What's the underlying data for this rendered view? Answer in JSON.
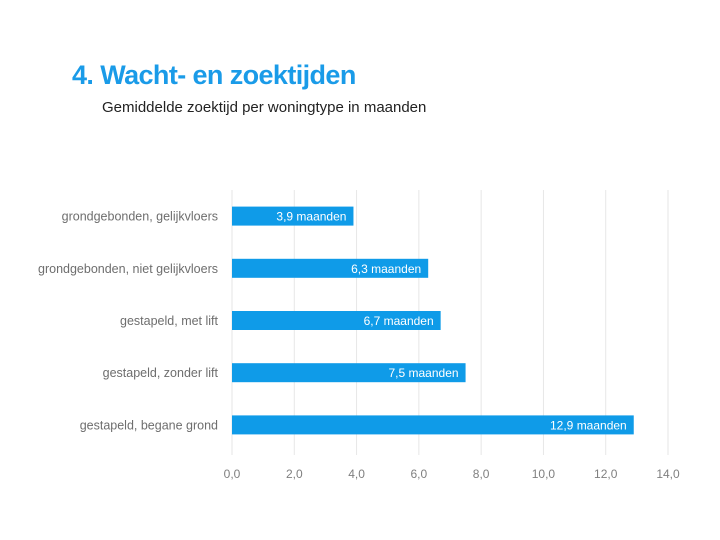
{
  "page": {
    "title": "4. Wacht- en zoektijden",
    "subtitle": "Gemiddelde zoektijd per woningtype in maanden"
  },
  "colors": {
    "title": "#1a9be8",
    "bar": "#0f9be8",
    "grid": "#e6e6e6",
    "axis_text": "#7f7f7f"
  },
  "chart_data": {
    "type": "bar",
    "orientation": "horizontal",
    "categories": [
      "grondgebonden, gelijkvloers",
      "grondgebonden, niet gelijkvloers",
      "gestapeld, met lift",
      "gestapeld, zonder lift",
      "gestapeld, begane grond"
    ],
    "values": [
      3.9,
      6.3,
      6.7,
      7.5,
      12.9
    ],
    "data_labels": [
      "3,9 maanden",
      "6,3 maanden",
      "6,7 maanden",
      "7,5 maanden",
      "12,9 maanden"
    ],
    "xlim": [
      0,
      14
    ],
    "xticks": [
      0,
      2,
      4,
      6,
      8,
      10,
      12,
      14
    ],
    "xtick_labels": [
      "0,0",
      "2,0",
      "4,0",
      "6,0",
      "8,0",
      "10,0",
      "12,0",
      "14,0"
    ],
    "grid": true,
    "legend": "none"
  }
}
